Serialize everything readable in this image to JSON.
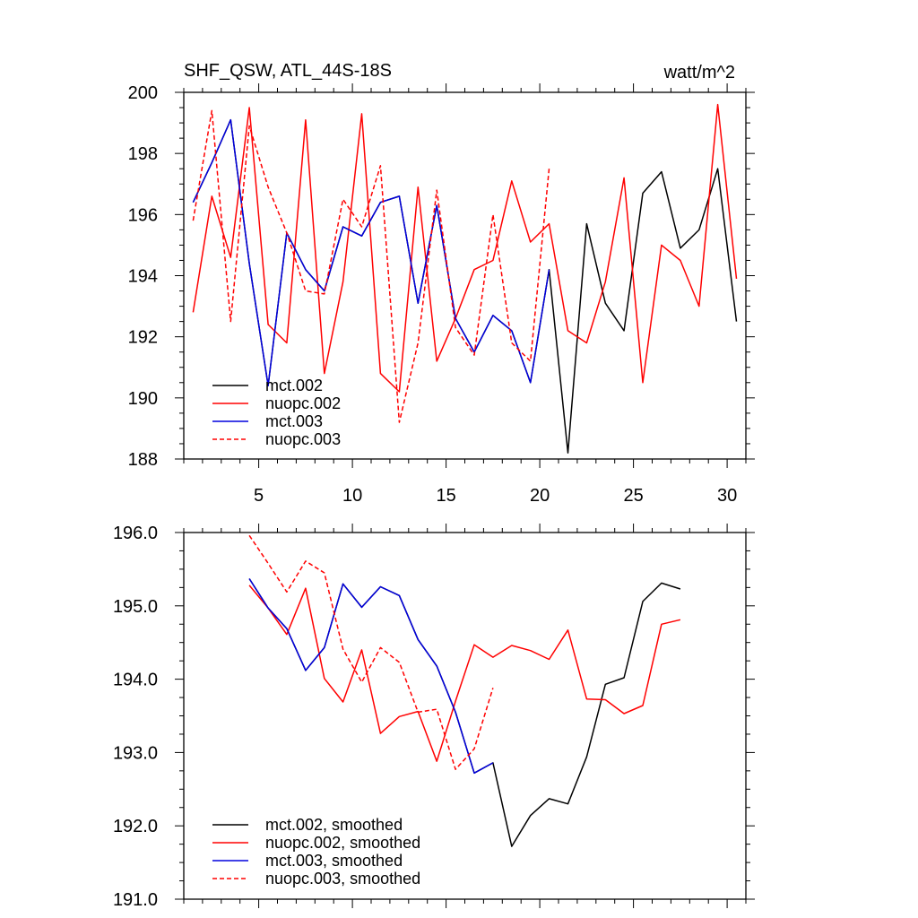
{
  "chart_data": [
    {
      "type": "line",
      "title": "SHF_QSW, ATL_44S-18S",
      "units": "watt/m^2",
      "xlim": [
        1,
        31
      ],
      "ylim": [
        188,
        200
      ],
      "xticks": [
        5,
        10,
        15,
        20,
        25,
        30
      ],
      "xtick_labels": [
        "5",
        "10",
        "15",
        "20",
        "25",
        "30"
      ],
      "yticks": [
        188,
        190,
        192,
        194,
        196,
        198,
        200
      ],
      "ytick_labels": [
        "188",
        "190",
        "192",
        "194",
        "196",
        "198",
        "200"
      ],
      "legend_position": "bottom-left",
      "series": [
        {
          "name": "mct.002",
          "color": "#000000",
          "dash": "solid",
          "x": [
            1.5,
            2.5,
            3.5,
            4.5,
            5.5,
            6.5,
            7.5,
            8.5,
            9.5,
            10.5,
            11.5,
            12.5,
            13.5,
            14.5,
            15.5,
            16.5,
            17.5,
            18.5,
            19.5,
            20.5,
            21.5,
            22.5,
            23.5,
            24.5,
            25.5,
            26.5,
            27.5,
            28.5,
            29.5,
            30.5
          ],
          "values": [
            196.4,
            197.7,
            199.1,
            194.4,
            190.4,
            195.4,
            194.2,
            193.5,
            195.6,
            195.3,
            196.4,
            196.6,
            193.1,
            196.3,
            192.6,
            191.5,
            192.7,
            192.2,
            190.5,
            194.2,
            188.2,
            195.7,
            193.1,
            192.2,
            196.7,
            197.4,
            194.9,
            195.5,
            197.5,
            192.5
          ]
        },
        {
          "name": "nuopc.002",
          "color": "#ff0000",
          "dash": "solid",
          "x": [
            1.5,
            2.5,
            3.5,
            4.5,
            5.5,
            6.5,
            7.5,
            8.5,
            9.5,
            10.5,
            11.5,
            12.5,
            13.5,
            14.5,
            15.5,
            16.5,
            17.5,
            18.5,
            19.5,
            20.5,
            21.5,
            22.5,
            23.5,
            24.5,
            25.5,
            26.5,
            27.5,
            28.5,
            29.5,
            30.5
          ],
          "values": [
            192.8,
            196.6,
            194.6,
            199.5,
            192.4,
            191.8,
            199.1,
            190.8,
            193.8,
            199.3,
            190.8,
            190.2,
            196.9,
            191.2,
            192.6,
            194.2,
            194.5,
            197.1,
            195.1,
            195.7,
            192.2,
            191.8,
            193.8,
            197.2,
            190.5,
            195.0,
            194.5,
            193.0,
            199.6,
            193.9
          ]
        },
        {
          "name": "mct.003",
          "color": "#0000dd",
          "dash": "solid",
          "x": [
            1.5,
            2.5,
            3.5,
            4.5,
            5.5,
            6.5,
            7.5,
            8.5,
            9.5,
            10.5,
            11.5,
            12.5,
            13.5,
            14.5,
            15.5,
            16.5,
            17.5,
            18.5,
            19.5,
            20.5
          ],
          "values": [
            196.4,
            197.7,
            199.1,
            194.4,
            190.4,
            195.4,
            194.2,
            193.5,
            195.6,
            195.3,
            196.4,
            196.6,
            193.1,
            196.3,
            192.6,
            191.5,
            192.7,
            192.2,
            190.5,
            194.2
          ]
        },
        {
          "name": "nuopc.003",
          "color": "#ff0000",
          "dash": "dashed",
          "x": [
            1.5,
            2.5,
            3.5,
            4.5,
            5.5,
            6.5,
            7.5,
            8.5,
            9.5,
            10.5,
            11.5,
            12.5,
            13.5,
            14.5,
            15.5,
            16.5,
            17.5,
            18.5,
            19.5,
            20.5
          ],
          "values": [
            195.8,
            199.4,
            192.5,
            198.9,
            196.9,
            195.4,
            193.5,
            193.4,
            196.5,
            195.6,
            197.6,
            189.2,
            191.8,
            196.8,
            192.3,
            191.4,
            196.0,
            191.8,
            191.2,
            197.5
          ]
        }
      ]
    },
    {
      "type": "line",
      "title": "",
      "xlim": [
        1,
        31
      ],
      "ylim": [
        191.0,
        196.0
      ],
      "xticks": [
        5,
        10,
        15,
        20,
        25,
        30
      ],
      "yticks": [
        191.0,
        192.0,
        193.0,
        194.0,
        195.0,
        196.0
      ],
      "ytick_labels": [
        "191.0",
        "192.0",
        "193.0",
        "194.0",
        "195.0",
        "196.0"
      ],
      "legend_position": "bottom-left",
      "series": [
        {
          "name": "mct.002, smoothed",
          "color": "#000000",
          "dash": "solid",
          "x": [
            4.5,
            5.5,
            6.5,
            7.5,
            8.5,
            9.5,
            10.5,
            11.5,
            12.5,
            13.5,
            14.5,
            15.5,
            16.5,
            17.5,
            18.5,
            19.5,
            20.5,
            21.5,
            22.5,
            23.5,
            24.5,
            25.5,
            26.5,
            27.5
          ],
          "values": [
            195.37,
            194.97,
            194.69,
            194.12,
            194.43,
            195.3,
            194.98,
            195.26,
            195.14,
            194.54,
            194.18,
            193.55,
            192.72,
            192.86,
            191.72,
            192.14,
            192.37,
            192.3,
            192.94,
            193.93,
            194.02,
            195.06,
            195.31,
            195.23
          ]
        },
        {
          "name": "nuopc.002, smoothed",
          "color": "#ff0000",
          "dash": "solid",
          "x": [
            4.5,
            5.5,
            6.5,
            7.5,
            8.5,
            9.5,
            10.5,
            11.5,
            12.5,
            13.5,
            14.5,
            15.5,
            16.5,
            17.5,
            18.5,
            19.5,
            20.5,
            21.5,
            22.5,
            23.5,
            24.5,
            25.5,
            26.5,
            27.5
          ],
          "values": [
            195.28,
            194.97,
            194.61,
            195.24,
            194.01,
            193.69,
            194.4,
            193.26,
            193.49,
            193.56,
            192.88,
            193.7,
            194.47,
            194.3,
            194.46,
            194.39,
            194.27,
            194.67,
            193.73,
            193.72,
            193.53,
            193.64,
            194.75,
            194.81
          ]
        },
        {
          "name": "mct.003, smoothed",
          "color": "#0000dd",
          "dash": "solid",
          "x": [
            4.5,
            5.5,
            6.5,
            7.5,
            8.5,
            9.5,
            10.5,
            11.5,
            12.5,
            13.5,
            14.5,
            15.5,
            16.5,
            17.5
          ],
          "values": [
            195.37,
            194.97,
            194.69,
            194.12,
            194.43,
            195.3,
            194.98,
            195.26,
            195.14,
            194.54,
            194.18,
            193.55,
            192.72,
            192.86
          ]
        },
        {
          "name": "nuopc.003, smoothed",
          "color": "#ff0000",
          "dash": "dashed",
          "x": [
            4.5,
            5.5,
            6.5,
            7.5,
            8.5,
            9.5,
            10.5,
            11.5,
            12.5,
            13.5,
            14.5,
            15.5,
            16.5,
            17.5
          ],
          "values": [
            195.96,
            195.58,
            195.19,
            195.61,
            195.45,
            194.41,
            193.96,
            194.43,
            194.23,
            193.55,
            193.59,
            192.77,
            193.05,
            193.88
          ]
        }
      ]
    }
  ]
}
